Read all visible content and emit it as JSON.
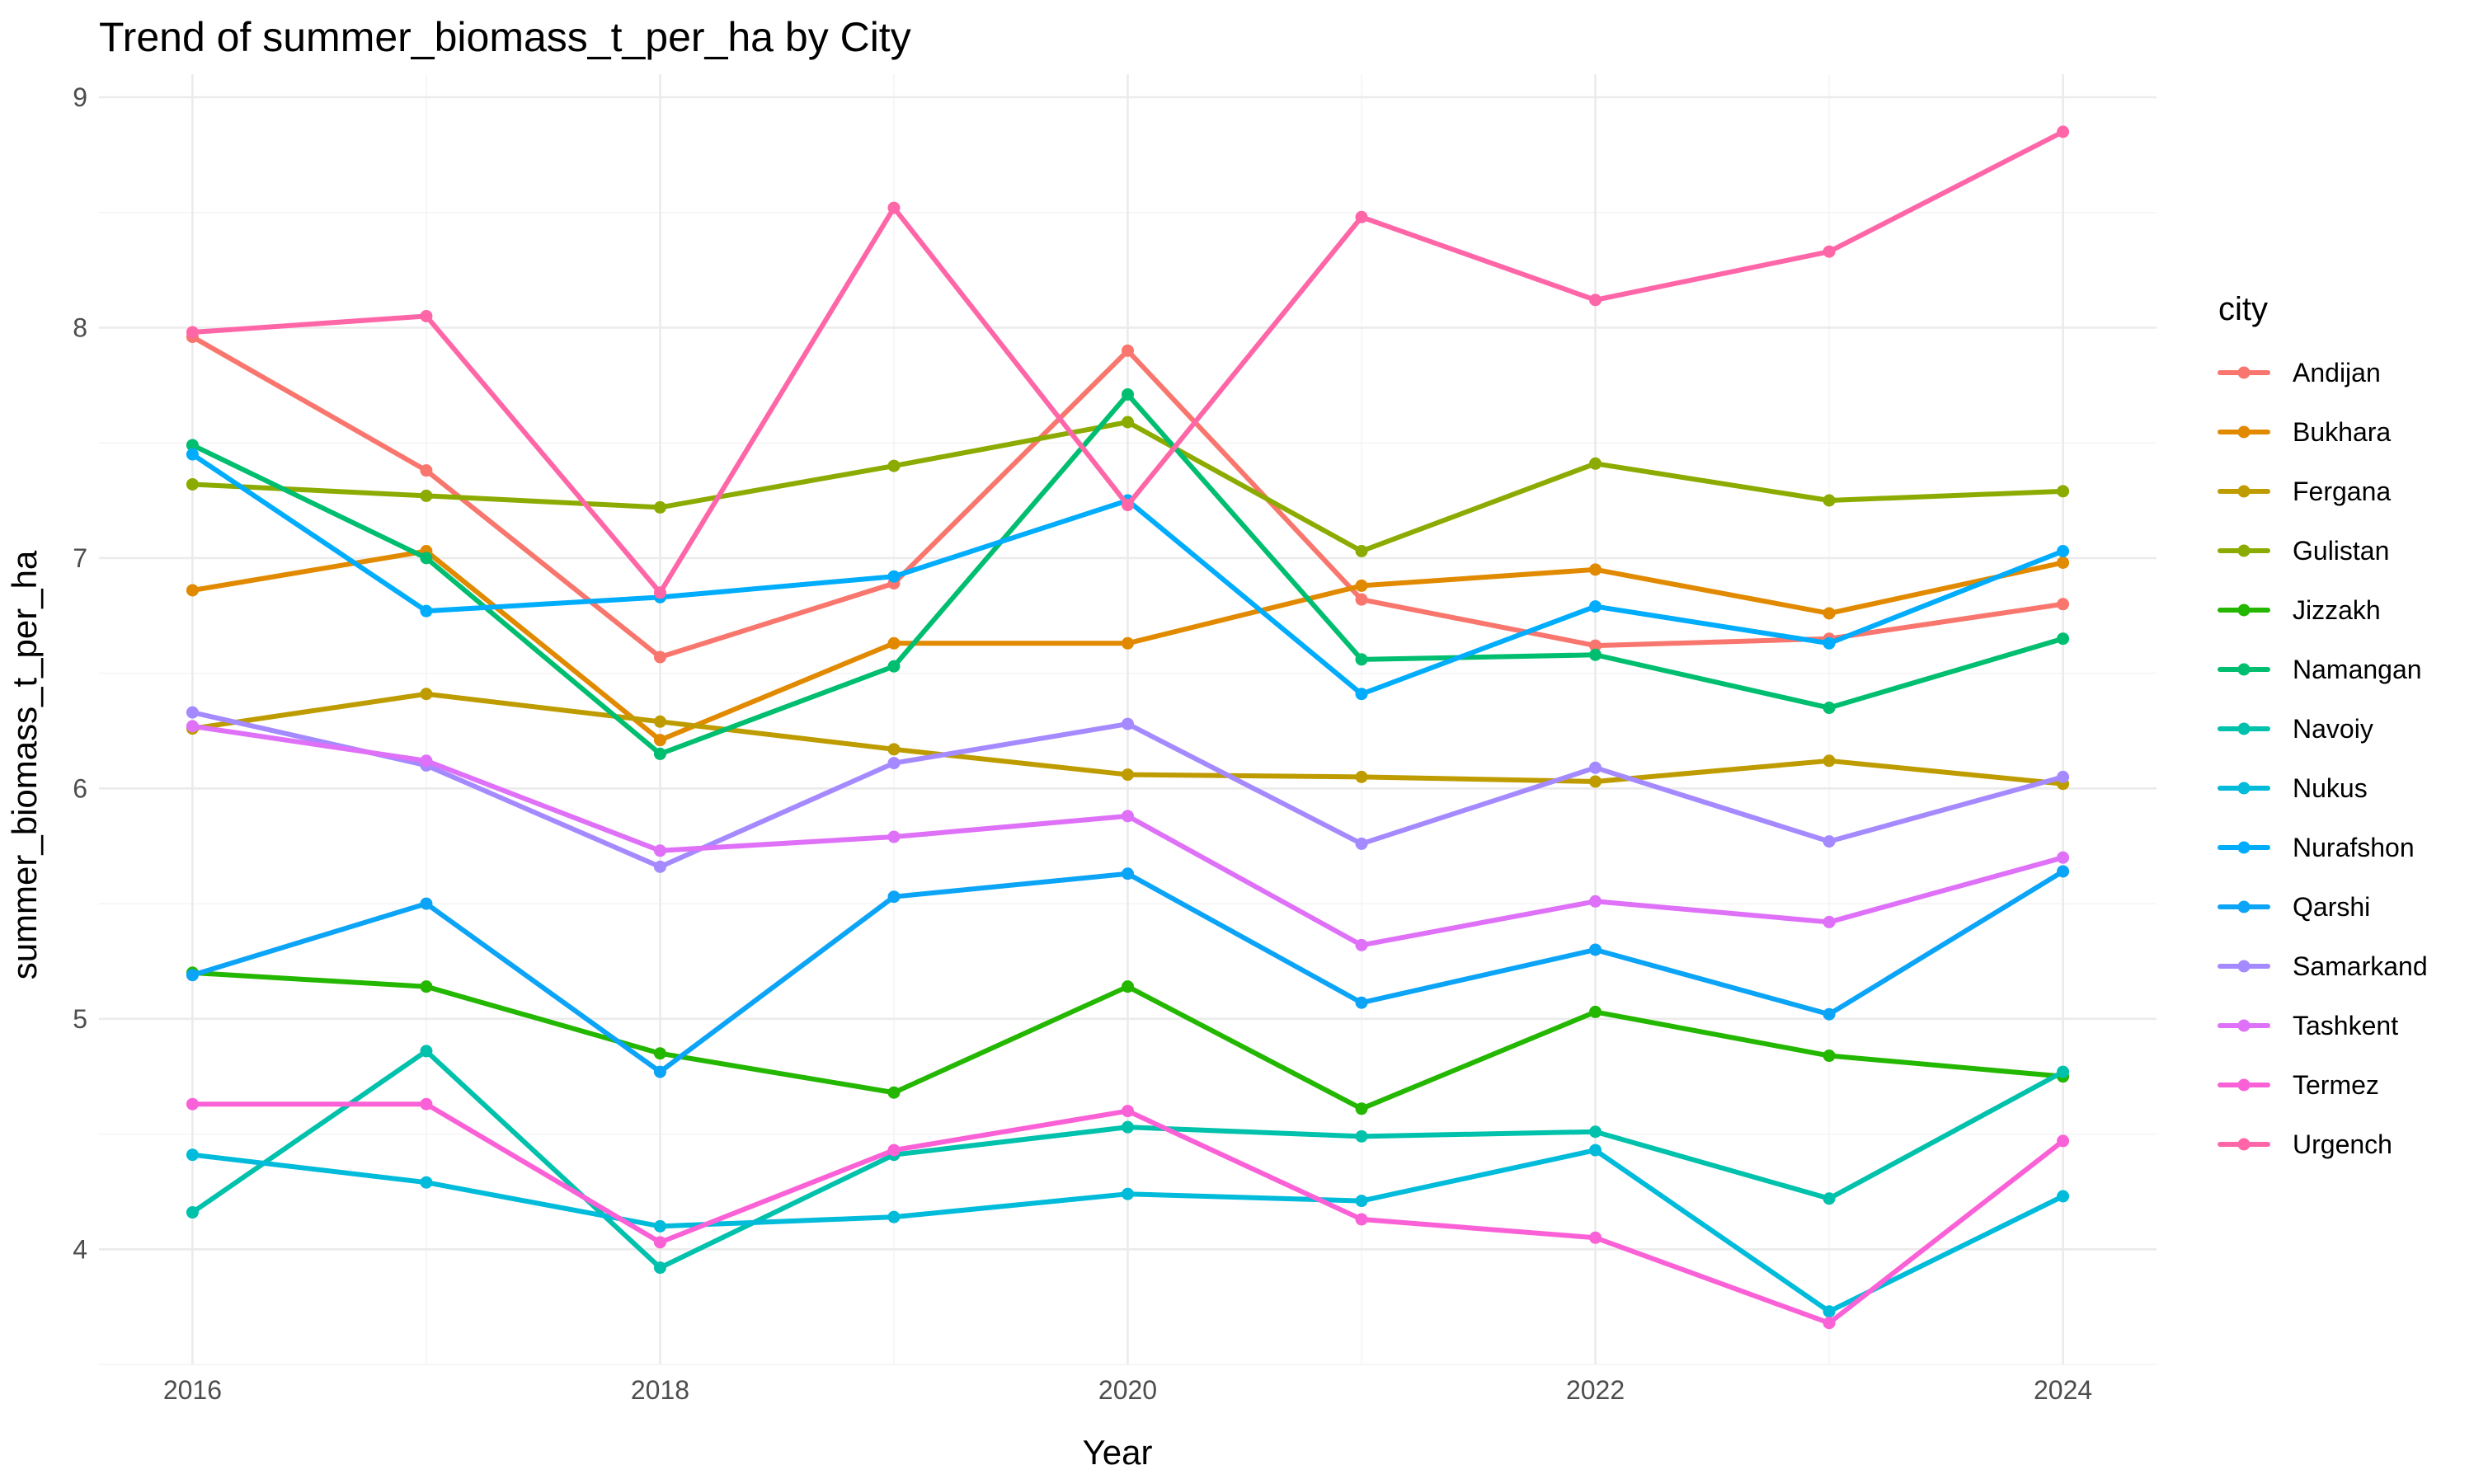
{
  "chart_data": {
    "type": "line",
    "title": "Trend of summer_biomass_t_per_ha by City",
    "xlabel": "Year",
    "ylabel": "summer_biomass_t_per_ha",
    "x": [
      2016,
      2017,
      2018,
      2019,
      2020,
      2021,
      2022,
      2023,
      2024
    ],
    "xlim": [
      2015.6,
      2024.4
    ],
    "ylim": [
      3.5,
      9.1
    ],
    "x_ticks": [
      "2016",
      "2018",
      "2020",
      "2022",
      "2024"
    ],
    "y_ticks": [
      "4",
      "5",
      "6",
      "7",
      "8",
      "9"
    ],
    "grid": true,
    "legend": {
      "title": "city",
      "position": "right"
    },
    "series": [
      {
        "name": "Andijan",
        "color": "#F8766D",
        "values": [
          7.96,
          7.38,
          6.57,
          6.89,
          7.9,
          6.82,
          6.62,
          6.65,
          6.8
        ]
      },
      {
        "name": "Bukhara",
        "color": "#E18A00",
        "values": [
          6.86,
          7.03,
          6.21,
          6.63,
          6.63,
          6.88,
          6.95,
          6.76,
          6.98
        ]
      },
      {
        "name": "Fergana",
        "color": "#BE9C00",
        "values": [
          6.26,
          6.41,
          6.29,
          6.17,
          6.06,
          6.05,
          6.03,
          6.12,
          6.02
        ]
      },
      {
        "name": "Gulistan",
        "color": "#8CAB00",
        "values": [
          7.32,
          7.27,
          7.22,
          7.4,
          7.59,
          7.03,
          7.41,
          7.25,
          7.29
        ]
      },
      {
        "name": "Jizzakh",
        "color": "#24B700",
        "values": [
          5.2,
          5.14,
          4.85,
          4.68,
          5.14,
          4.61,
          5.03,
          4.84,
          4.75
        ]
      },
      {
        "name": "Namangan",
        "color": "#00BE70",
        "values": [
          7.49,
          7.0,
          6.15,
          6.53,
          7.71,
          6.56,
          6.58,
          6.35,
          6.65
        ]
      },
      {
        "name": "Navoiy",
        "color": "#00C1AB",
        "values": [
          4.16,
          4.86,
          3.92,
          4.41,
          4.53,
          4.49,
          4.51,
          4.22,
          4.77
        ]
      },
      {
        "name": "Nukus",
        "color": "#00BBDA",
        "values": [
          4.41,
          4.29,
          4.1,
          4.14,
          4.24,
          4.21,
          4.43,
          3.73,
          4.23
        ]
      },
      {
        "name": "Nurafshon",
        "color": "#00ACFC",
        "values": [
          7.45,
          6.77,
          6.83,
          6.92,
          7.25,
          6.41,
          6.79,
          6.63,
          7.03
        ]
      },
      {
        "name": "Qarshi",
        "color": "#0BA4F7",
        "values": [
          5.19,
          5.5,
          4.77,
          5.53,
          5.63,
          5.07,
          5.3,
          5.02,
          5.64
        ]
      },
      {
        "name": "Samarkand",
        "color": "#A58AFF",
        "values": [
          6.33,
          6.1,
          5.66,
          6.11,
          6.28,
          5.76,
          6.09,
          5.77,
          6.05
        ]
      },
      {
        "name": "Tashkent",
        "color": "#DF70F8",
        "values": [
          6.27,
          6.12,
          5.73,
          5.79,
          5.88,
          5.32,
          5.51,
          5.42,
          5.7
        ]
      },
      {
        "name": "Termez",
        "color": "#FB61D7",
        "values": [
          4.63,
          4.63,
          4.03,
          4.43,
          4.6,
          4.13,
          4.05,
          3.68,
          4.47
        ]
      },
      {
        "name": "Urgench",
        "color": "#FF66A8",
        "values": [
          7.98,
          8.05,
          6.85,
          8.52,
          7.23,
          8.48,
          8.12,
          8.33,
          8.85
        ]
      }
    ]
  }
}
